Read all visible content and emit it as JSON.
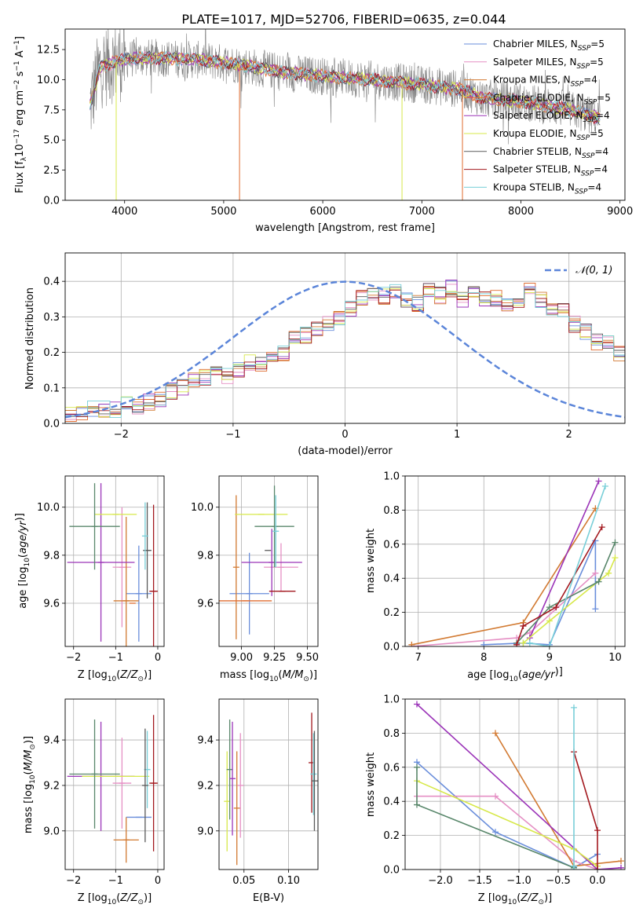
{
  "figure_title": "PLATE=1017, MJD=52706, FIBERID=0635, z=0.044",
  "colors": {
    "grid": "#b0b0b0",
    "models": [
      "#6a8edb",
      "#e58fc4",
      "#d27a32",
      "#df6b2f",
      "#9b34b8",
      "#d7e84a",
      "#5a5a5a",
      "#a3191f",
      "#78cfd8"
    ],
    "data": "#808080",
    "normal_curve": "#5b85d9",
    "extra": "#59876b"
  },
  "chart_data": [
    {
      "type": "line",
      "id": "spectrum",
      "title": "PLATE=1017, MJD=52706, FIBERID=0635, z=0.044",
      "xlabel": "wavelength [Angstrom, rest frame]",
      "ylabel": "Flux [f_λ 10^-17 erg cm^-2 s^-1 A^-1]",
      "xlim": [
        3400,
        9050
      ],
      "ylim": [
        0,
        14.2
      ],
      "xticks": [
        4000,
        5000,
        6000,
        7000,
        8000,
        9000
      ],
      "yticks": [
        0.0,
        2.5,
        5.0,
        7.5,
        10.0,
        12.5
      ],
      "ytick_labels": [
        "0.0",
        "2.5",
        "5.0",
        "7.5",
        "10.0",
        "12.5"
      ],
      "legend_position": "top-right",
      "x_range": [
        3650,
        8800
      ],
      "continuum_anchor_points": [
        [
          3650,
          7.8
        ],
        [
          3750,
          11.0
        ],
        [
          3900,
          11.5
        ],
        [
          4100,
          11.8
        ],
        [
          4400,
          11.8
        ],
        [
          4800,
          11.6
        ],
        [
          5200,
          11.2
        ],
        [
          5600,
          10.6
        ],
        [
          6000,
          10.3
        ],
        [
          6500,
          10.0
        ],
        [
          7000,
          9.6
        ],
        [
          7400,
          9.2
        ],
        [
          7600,
          8.5
        ],
        [
          8000,
          8.2
        ],
        [
          8500,
          7.5
        ],
        [
          8800,
          6.8
        ]
      ],
      "series": [
        {
          "name": "Chabrier MILES, N_SSP=5"
        },
        {
          "name": "Salpeter MILES, N_SSP=5"
        },
        {
          "name": "Kroupa MILES, N_SSP=4"
        },
        {
          "name": "Chabrier ELODIE, N_SSP=5"
        },
        {
          "name": "Salpeter ELODIE, N_SSP=4"
        },
        {
          "name": "Kroupa ELODIE, N_SSP=5"
        },
        {
          "name": "Chabrier STELIB, N_SSP=4"
        },
        {
          "name": "Salpeter STELIB, N_SSP=4"
        },
        {
          "name": "Kroupa STELIB, N_SSP=4"
        }
      ]
    },
    {
      "type": "bar",
      "id": "residuals",
      "xlabel": "(data-model)/error",
      "ylabel": "Normed distribution",
      "xlim": [
        -2.5,
        2.5
      ],
      "ylim": [
        0,
        0.48
      ],
      "xticks": [
        -2,
        -1,
        0,
        1,
        2
      ],
      "yticks": [
        0.0,
        0.1,
        0.2,
        0.3,
        0.4
      ],
      "ytick_labels": [
        "0.0",
        "0.1",
        "0.2",
        "0.3",
        "0.4"
      ],
      "legend": "𝒩(0, 1)",
      "legend_position": "top-right",
      "bin_width": 0.1,
      "histogram_base": [
        0.03,
        0.03,
        0.04,
        0.04,
        0.04,
        0.05,
        0.05,
        0.06,
        0.07,
        0.09,
        0.1,
        0.12,
        0.13,
        0.14,
        0.13,
        0.15,
        0.17,
        0.17,
        0.19,
        0.2,
        0.25,
        0.25,
        0.27,
        0.28,
        0.3,
        0.32,
        0.35,
        0.36,
        0.36,
        0.37,
        0.35,
        0.34,
        0.37,
        0.36,
        0.38,
        0.35,
        0.37,
        0.35,
        0.35,
        0.33,
        0.35,
        0.38,
        0.35,
        0.32,
        0.32,
        0.28,
        0.26,
        0.23,
        0.23,
        0.2,
        0.2,
        0.2,
        0.17,
        0.15,
        0.12,
        0.11,
        0.13,
        0.12,
        0.1,
        0.09,
        0.08,
        0.07,
        0.06,
        0.05,
        0.05,
        0.05,
        0.04,
        0.04,
        0.03,
        0.03
      ]
    },
    {
      "type": "scatter",
      "id": "age_vs_Z",
      "xlabel": "Z [log10(Z/Z⊙)]",
      "ylabel": "age  [log10(age/yr)]",
      "xlim": [
        -2.2,
        0.15
      ],
      "ylim": [
        9.42,
        10.13
      ],
      "xticks": [
        -2,
        -1,
        0
      ],
      "yticks": [
        9.6,
        9.8,
        10.0
      ],
      "ytick_labels": [
        "9.6",
        "9.8",
        "10.0"
      ],
      "points": [
        {
          "c": 0,
          "x": -0.45,
          "xerr": 0.3,
          "y": 9.64,
          "yerr": 0.2
        },
        {
          "c": 1,
          "x": -0.85,
          "xerr": 0.22,
          "y": 9.75,
          "yerr": 0.25
        },
        {
          "c": 2,
          "x": -0.75,
          "xerr": 0.3,
          "y": 9.61,
          "yerr": 0.35
        },
        {
          "c": 3,
          "x": -0.6,
          "xerr": 0.0,
          "y": 9.6,
          "yerr": 0.0
        },
        {
          "c": 4,
          "x": -1.35,
          "xerr": 0.8,
          "y": 9.77,
          "yerr": 0.33
        },
        {
          "c": 5,
          "x": -1.0,
          "xerr": 0.5,
          "y": 9.97,
          "yerr": 0.0
        },
        {
          "c": 9,
          "x": -1.5,
          "xerr": 0.6,
          "y": 9.92,
          "yerr": 0.18
        },
        {
          "c": 6,
          "x": -0.25,
          "xerr": 0.1,
          "y": 9.82,
          "yerr": 0.2
        },
        {
          "c": 7,
          "x": -0.1,
          "xerr": 0.1,
          "y": 9.65,
          "yerr": 0.36
        },
        {
          "c": 8,
          "x": -0.3,
          "xerr": 0.0,
          "y": 9.88,
          "yerr": 0.14
        }
      ]
    },
    {
      "type": "scatter",
      "id": "age_vs_mass",
      "xlabel": "mass [log10(M/M⊙)]",
      "ylabel": "",
      "xlim": [
        8.83,
        9.58
      ],
      "ylim": [
        9.42,
        10.13
      ],
      "xticks": [
        9.0,
        9.25,
        9.5
      ],
      "xtick_labels": [
        "9.00",
        "9.25",
        "9.50"
      ],
      "yticks": [
        9.6,
        9.8,
        10.0
      ],
      "ytick_labels": [
        "9.6",
        "9.8",
        "10.0"
      ],
      "points": [
        {
          "c": 0,
          "x": 9.06,
          "xerr": 0.15,
          "y": 9.64,
          "yerr": 0.17
        },
        {
          "c": 1,
          "x": 9.3,
          "xerr": 0.13,
          "y": 9.75,
          "yerr": 0.1
        },
        {
          "c": 2,
          "x": 8.96,
          "xerr": 0.0,
          "y": 9.75,
          "yerr": 0.3
        },
        {
          "c": 3,
          "x": 9.03,
          "xerr": 0.2,
          "y": 9.61,
          "yerr": 0.0
        },
        {
          "c": 4,
          "x": 9.23,
          "xerr": 0.23,
          "y": 9.77,
          "yerr": 0.14
        },
        {
          "c": 5,
          "x": 9.15,
          "xerr": 0.2,
          "y": 9.97,
          "yerr": 0.0
        },
        {
          "c": 9,
          "x": 9.25,
          "xerr": 0.15,
          "y": 9.92,
          "yerr": 0.17
        },
        {
          "c": 6,
          "x": 9.2,
          "xerr": 0.0,
          "y": 9.82,
          "yerr": 0.0
        },
        {
          "c": 7,
          "x": 9.31,
          "xerr": 0.1,
          "y": 9.65,
          "yerr": 0.0
        },
        {
          "c": 8,
          "x": 9.26,
          "xerr": 0.0,
          "y": 9.9,
          "yerr": 0.15
        }
      ]
    },
    {
      "type": "line",
      "id": "mass_weight_vs_age",
      "xlabel": "age  [log10(age/yr)]",
      "ylabel": "mass weight",
      "xlim": [
        6.8,
        10.15
      ],
      "ylim": [
        0,
        1
      ],
      "xticks": [
        7,
        8,
        9,
        10
      ],
      "yticks": [
        0.0,
        0.2,
        0.4,
        0.6,
        0.8,
        1.0
      ],
      "ytick_labels": [
        "0.0",
        "0.2",
        "0.4",
        "0.6",
        "0.8",
        "1.0"
      ],
      "series": [
        {
          "c": 0,
          "points": [
            [
              8.0,
              0.01
            ],
            [
              8.6,
              0.02
            ],
            [
              9.0,
              0.01
            ],
            [
              9.7,
              0.62
            ],
            [
              9.7,
              0.22
            ]
          ]
        },
        {
          "c": 1,
          "points": [
            [
              6.9,
              0.0
            ],
            [
              8.5,
              0.05
            ],
            [
              8.7,
              0.08
            ],
            [
              9.7,
              0.43
            ]
          ]
        },
        {
          "c": 2,
          "points": [
            [
              6.9,
              0.01
            ],
            [
              8.6,
              0.14
            ],
            [
              9.7,
              0.81
            ]
          ]
        },
        {
          "c": 4,
          "points": [
            [
              8.7,
              0.05
            ],
            [
              9.75,
              0.97
            ]
          ]
        },
        {
          "c": 5,
          "points": [
            [
              8.6,
              0.02
            ],
            [
              9.0,
              0.15
            ],
            [
              9.9,
              0.43
            ],
            [
              10.0,
              0.52
            ]
          ]
        },
        {
          "c": 9,
          "points": [
            [
              8.5,
              0.02
            ],
            [
              9.0,
              0.23
            ],
            [
              9.75,
              0.38
            ],
            [
              10.0,
              0.61
            ]
          ]
        },
        {
          "c": 7,
          "points": [
            [
              8.5,
              0.01
            ],
            [
              8.6,
              0.12
            ],
            [
              9.1,
              0.23
            ],
            [
              9.8,
              0.7
            ]
          ]
        },
        {
          "c": 8,
          "points": [
            [
              8.7,
              0.02
            ],
            [
              9.0,
              0.0
            ],
            [
              9.85,
              0.94
            ]
          ]
        }
      ]
    },
    {
      "type": "scatter",
      "id": "mass_vs_Z",
      "xlabel": "Z [log10(Z/Z⊙)]",
      "ylabel": "mass [log10(M/M⊙)]",
      "xlim": [
        -2.2,
        0.15
      ],
      "ylim": [
        8.83,
        9.58
      ],
      "xticks": [
        -2,
        -1,
        0
      ],
      "yticks": [
        9.0,
        9.2,
        9.4
      ],
      "ytick_labels": [
        "9.0",
        "9.2",
        "9.4"
      ],
      "points": [
        {
          "c": 0,
          "x": -0.45,
          "xerr": 0.3,
          "y": 9.06,
          "yerr": 0.0
        },
        {
          "c": 1,
          "x": -0.85,
          "xerr": 0.22,
          "y": 9.21,
          "yerr": 0.2
        },
        {
          "c": 2,
          "x": -0.75,
          "xerr": 0.3,
          "y": 8.96,
          "yerr": 0.1
        },
        {
          "c": 4,
          "x": -1.35,
          "xerr": 0.8,
          "y": 9.24,
          "yerr": 0.24
        },
        {
          "c": 5,
          "x": -1.0,
          "xerr": 0.8,
          "y": 9.24,
          "yerr": 0.0
        },
        {
          "c": 9,
          "x": -1.5,
          "xerr": 0.6,
          "y": 9.25,
          "yerr": 0.24
        },
        {
          "c": 8,
          "x": -0.25,
          "xerr": 0.0,
          "y": 9.27,
          "yerr": 0.17
        },
        {
          "c": 6,
          "x": -0.3,
          "xerr": 0.0,
          "y": 9.2,
          "yerr": 0.25
        },
        {
          "c": 7,
          "x": -0.1,
          "xerr": 0.1,
          "y": 9.21,
          "yerr": 0.3
        }
      ]
    },
    {
      "type": "scatter",
      "id": "mass_vs_ebv",
      "xlabel": "E(B-V)",
      "ylabel": "",
      "xlim": [
        0.022,
        0.133
      ],
      "ylim": [
        8.83,
        9.58
      ],
      "xticks": [
        0.05,
        0.1
      ],
      "xtick_labels": [
        "0.05",
        "0.10"
      ],
      "yticks": [
        9.0,
        9.2,
        9.4
      ],
      "ytick_labels": [
        "9.0",
        "9.2",
        "9.4"
      ],
      "points": [
        {
          "c": 5,
          "x": 0.031,
          "xerr": 0.0,
          "y": 9.13,
          "yerr": 0.22
        },
        {
          "c": 9,
          "x": 0.034,
          "xerr": 0.0,
          "y": 9.27,
          "yerr": 0.22
        },
        {
          "c": 4,
          "x": 0.037,
          "xerr": 0.0,
          "y": 9.23,
          "yerr": 0.25
        },
        {
          "c": 2,
          "x": 0.042,
          "xerr": 0.0,
          "y": 9.1,
          "yerr": 0.25
        },
        {
          "c": 1,
          "x": 0.046,
          "xerr": 0.0,
          "y": 9.2,
          "yerr": 0.23
        },
        {
          "c": 7,
          "x": 0.126,
          "xerr": 0.0,
          "y": 9.3,
          "yerr": 0.22
        },
        {
          "c": 8,
          "x": 0.128,
          "xerr": 0.0,
          "y": 9.25,
          "yerr": 0.18
        },
        {
          "c": 6,
          "x": 0.129,
          "xerr": 0.0,
          "y": 9.22,
          "yerr": 0.22
        }
      ]
    },
    {
      "type": "line",
      "id": "mass_weight_vs_Z",
      "xlabel": "Z [log10(Z/Z⊙)]",
      "ylabel": "mass weight",
      "xlim": [
        -2.45,
        0.35
      ],
      "ylim": [
        0,
        1
      ],
      "xticks": [
        -2.0,
        -1.5,
        -1.0,
        -0.5,
        0.0
      ],
      "xtick_labels": [
        "−2.0",
        "−1.5",
        "−1.0",
        "−0.5",
        "0.0"
      ],
      "yticks": [
        0.0,
        0.2,
        0.4,
        0.6,
        0.8,
        1.0
      ],
      "ytick_labels": [
        "0.0",
        "0.2",
        "0.4",
        "0.6",
        "0.8",
        "1.0"
      ],
      "series": [
        {
          "c": 0,
          "points": [
            [
              -2.3,
              0.63
            ],
            [
              -1.3,
              0.22
            ],
            [
              -0.3,
              0.01
            ],
            [
              0.0,
              0.09
            ]
          ]
        },
        {
          "c": 1,
          "points": [
            [
              -2.3,
              0.43
            ],
            [
              -1.3,
              0.43
            ],
            [
              -0.3,
              0.05
            ],
            [
              0.0,
              0.0
            ]
          ]
        },
        {
          "c": 2,
          "points": [
            [
              -1.3,
              0.8
            ],
            [
              -0.3,
              0.02
            ],
            [
              0.3,
              0.05
            ]
          ]
        },
        {
          "c": 4,
          "points": [
            [
              -2.3,
              0.97
            ],
            [
              0.0,
              0.0
            ],
            [
              0.3,
              0.01
            ]
          ]
        },
        {
          "c": 5,
          "points": [
            [
              -2.3,
              0.52
            ],
            [
              -0.3,
              0.12
            ],
            [
              0.0,
              0.02
            ]
          ]
        },
        {
          "c": 9,
          "points": [
            [
              -2.3,
              0.6
            ],
            [
              -2.3,
              0.38
            ],
            [
              -0.3,
              0.01
            ]
          ]
        },
        {
          "c": 7,
          "points": [
            [
              -0.3,
              0.69
            ],
            [
              0.0,
              0.23
            ],
            [
              0.0,
              0.0
            ]
          ]
        },
        {
          "c": 8,
          "points": [
            [
              -0.3,
              0.95
            ],
            [
              -0.3,
              0.02
            ],
            [
              -0.3,
              0.0
            ]
          ]
        }
      ]
    }
  ]
}
